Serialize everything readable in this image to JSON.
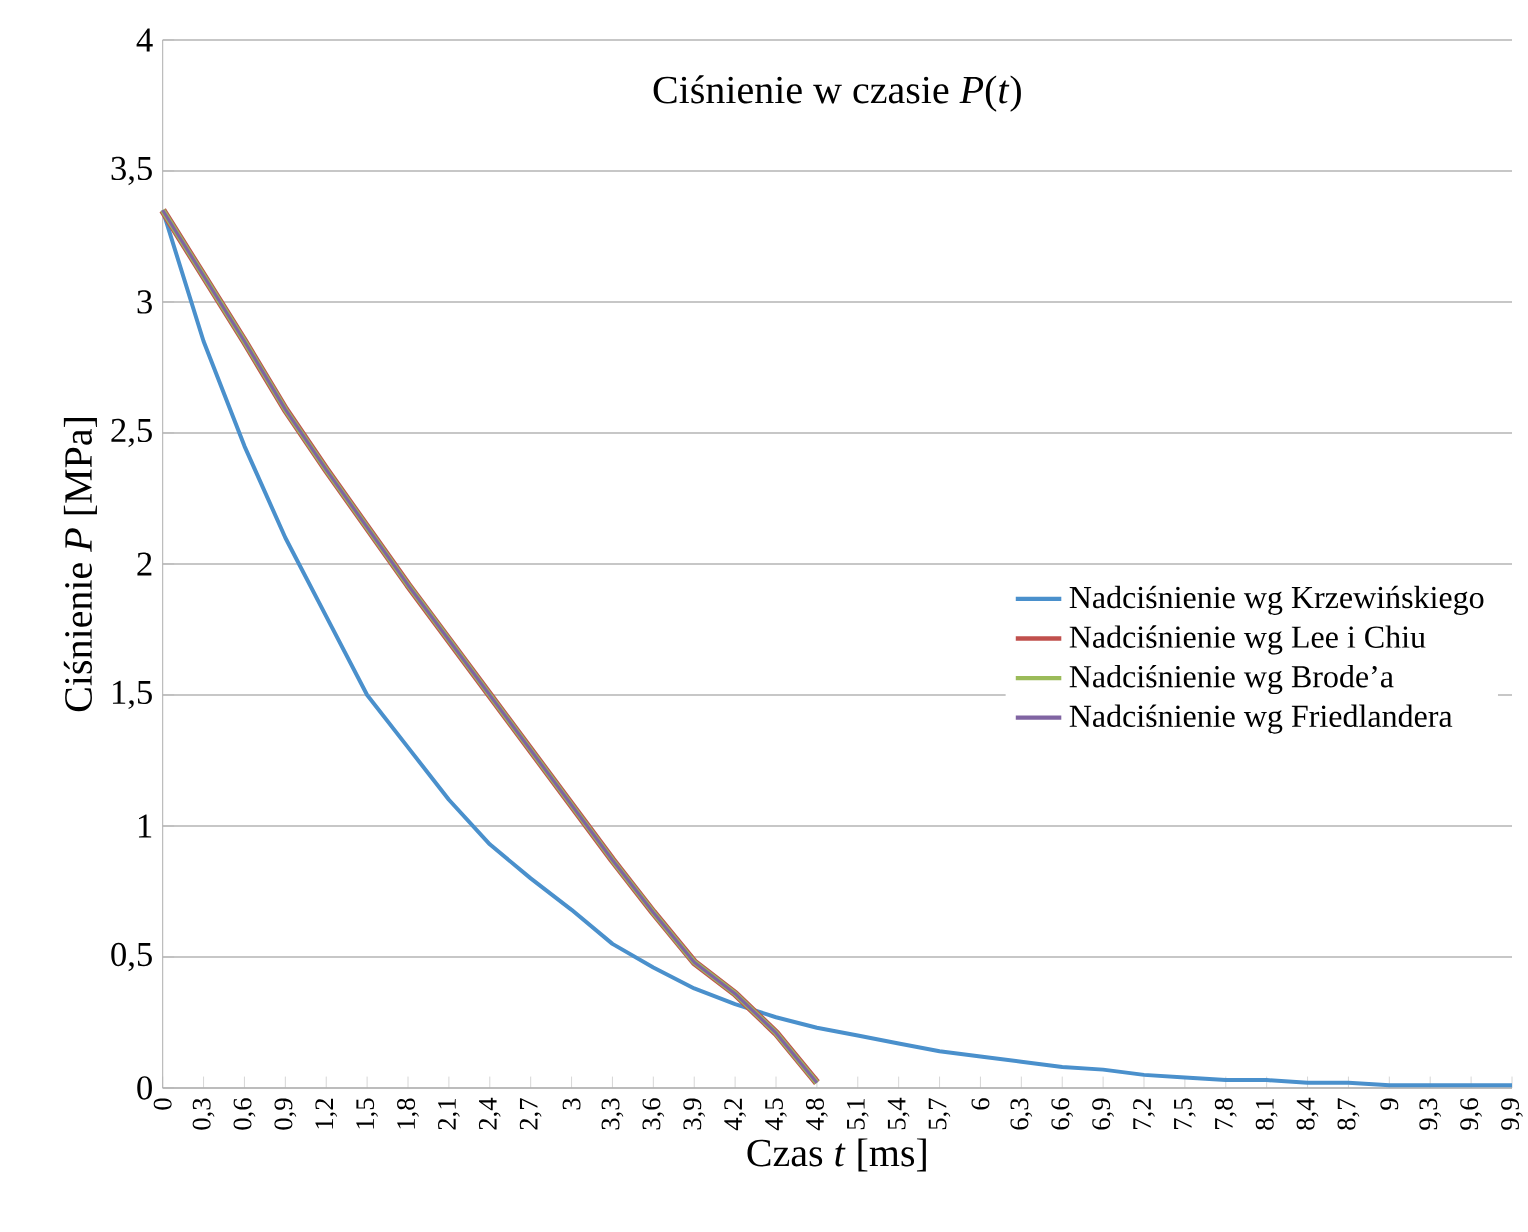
{
  "chart_data": {
    "type": "line",
    "title": "Ciśnienie w czasie *P*(*t*)",
    "xlabel": "Czas *t* [ms]",
    "ylabel": "Ciśnienie *P* [MPa]",
    "categories": [
      "0",
      "0,3",
      "0,6",
      "0,9",
      "1,2",
      "1,5",
      "1,8",
      "2,1",
      "2,4",
      "2,7",
      "3",
      "3,3",
      "3,6",
      "3,9",
      "4,2",
      "4,5",
      "4,8",
      "5,1",
      "5,4",
      "5,7",
      "6",
      "6,3",
      "6,6",
      "6,9",
      "7,2",
      "7,5",
      "7,8",
      "8,1",
      "8,4",
      "8,7",
      "9",
      "9,3",
      "9,6",
      "9,9"
    ],
    "series": [
      {
        "name": "Nadciśnienie wg Krzewińskiego",
        "color": "#4a90cc",
        "values": [
          3.35,
          2.85,
          2.45,
          2.1,
          1.8,
          1.5,
          1.3,
          1.1,
          0.93,
          0.8,
          0.68,
          0.55,
          0.46,
          0.38,
          0.32,
          0.27,
          0.23,
          0.2,
          0.17,
          0.14,
          0.12,
          0.1,
          0.08,
          0.07,
          0.05,
          0.04,
          0.03,
          0.03,
          0.02,
          0.02,
          0.01,
          0.01,
          0.01,
          0.01
        ]
      },
      {
        "name": "Nadciśnienie wg Lee i Chiu",
        "color": "#c0504d",
        "values": [
          3.35,
          3.1,
          2.85,
          2.59,
          2.36,
          2.14,
          1.92,
          1.71,
          1.5,
          1.29,
          1.08,
          0.87,
          0.67,
          0.48,
          0.36,
          0.21,
          0.02,
          null,
          null,
          null,
          null,
          null,
          null,
          null,
          null,
          null,
          null,
          null,
          null,
          null,
          null,
          null,
          null,
          null
        ]
      },
      {
        "name": "Nadciśnienie wg Brode’a",
        "color": "#9bbb59",
        "values": [
          3.35,
          3.1,
          2.85,
          2.59,
          2.36,
          2.14,
          1.92,
          1.71,
          1.5,
          1.29,
          1.08,
          0.87,
          0.67,
          0.48,
          0.36,
          0.21,
          0.02,
          null,
          null,
          null,
          null,
          null,
          null,
          null,
          null,
          null,
          null,
          null,
          null,
          null,
          null,
          null,
          null,
          null
        ]
      },
      {
        "name": "Nadciśnienie wg Friedlandera",
        "color": "#8064a2",
        "values": [
          3.35,
          3.1,
          2.85,
          2.59,
          2.36,
          2.14,
          1.92,
          1.71,
          1.5,
          1.29,
          1.08,
          0.87,
          0.67,
          0.48,
          0.36,
          0.21,
          0.02,
          null,
          null,
          null,
          null,
          null,
          null,
          null,
          null,
          null,
          null,
          null,
          null,
          null,
          null,
          null,
          null,
          null
        ]
      }
    ],
    "ylim": [
      0,
      4
    ],
    "yticks": [
      0,
      {
        "value": 0.5,
        "label": "0,5"
      },
      1,
      {
        "value": 1.5,
        "label": "1,5"
      },
      2,
      {
        "value": 2.5,
        "label": "2,5"
      },
      3,
      {
        "value": 3.5,
        "label": "3,5"
      },
      4
    ],
    "grid": "y",
    "legend": "right",
    "marker": "none",
    "line_style": "solid"
  }
}
